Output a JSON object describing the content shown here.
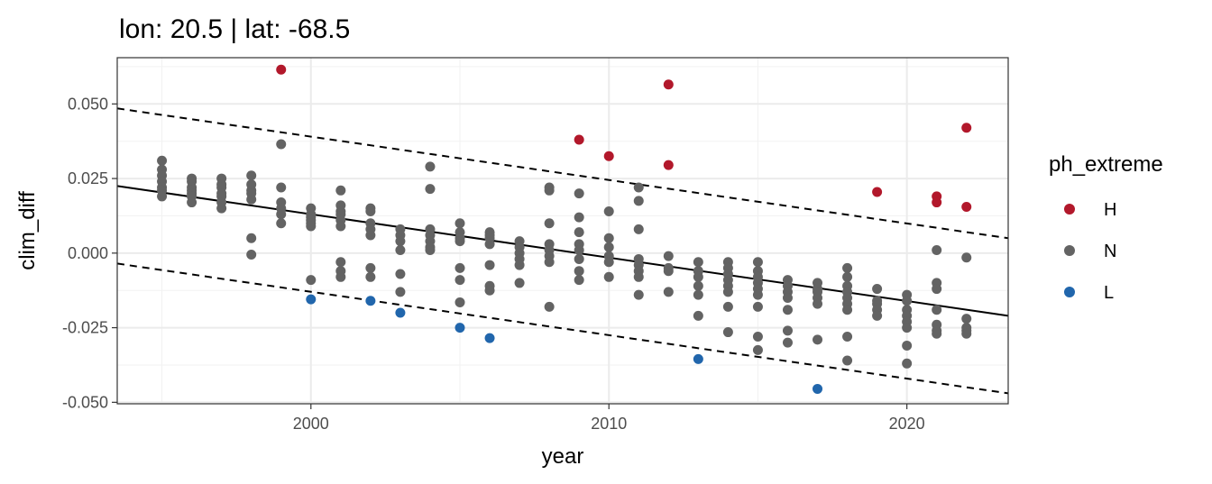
{
  "chart_data": {
    "type": "scatter",
    "title": "lon: 20.5 | lat: -68.5",
    "xlabel": "year",
    "ylabel": "clim_diff",
    "xlim": [
      1993.5,
      2023.4
    ],
    "ylim": [
      -0.0505,
      0.0655
    ],
    "x_ticks": [
      2000,
      2010,
      2020
    ],
    "x_tick_labels": [
      "2000",
      "2010",
      "2020"
    ],
    "y_ticks": [
      -0.05,
      -0.025,
      0.0,
      0.025,
      0.05
    ],
    "y_tick_labels": [
      "-0.050",
      "-0.025",
      "0.000",
      "0.025",
      "0.050"
    ],
    "grid": true,
    "legend": {
      "title": "ph_extreme",
      "placement": "right",
      "entries": [
        {
          "label": "H",
          "color": "#b2182b"
        },
        {
          "label": "N",
          "color": "#636363"
        },
        {
          "label": "L",
          "color": "#2166ac"
        }
      ]
    },
    "series": [
      {
        "name": "H",
        "color": "#b2182b",
        "points": [
          [
            1999,
            0.0615
          ],
          [
            2009,
            0.038
          ],
          [
            2010,
            0.0325
          ],
          [
            2012,
            0.0565
          ],
          [
            2012,
            0.0295
          ],
          [
            2019,
            0.0205
          ],
          [
            2021,
            0.019
          ],
          [
            2021,
            0.017
          ],
          [
            2022,
            0.042
          ],
          [
            2022,
            0.0155
          ]
        ]
      },
      {
        "name": "N",
        "color": "#636363",
        "points": [
          [
            1995,
            0.031
          ],
          [
            1995,
            0.028
          ],
          [
            1995,
            0.026
          ],
          [
            1995,
            0.024
          ],
          [
            1995,
            0.022
          ],
          [
            1995,
            0.021
          ],
          [
            1995,
            0.019
          ],
          [
            1996,
            0.025
          ],
          [
            1996,
            0.024
          ],
          [
            1996,
            0.022
          ],
          [
            1996,
            0.021
          ],
          [
            1996,
            0.02
          ],
          [
            1996,
            0.019
          ],
          [
            1996,
            0.017
          ],
          [
            1997,
            0.025
          ],
          [
            1997,
            0.023
          ],
          [
            1997,
            0.022
          ],
          [
            1997,
            0.02
          ],
          [
            1997,
            0.019
          ],
          [
            1997,
            0.017
          ],
          [
            1997,
            0.015
          ],
          [
            1998,
            0.026
          ],
          [
            1998,
            0.023
          ],
          [
            1998,
            0.021
          ],
          [
            1998,
            0.02
          ],
          [
            1998,
            0.018
          ],
          [
            1998,
            0.005
          ],
          [
            1998,
            -0.0005
          ],
          [
            1999,
            0.0365
          ],
          [
            1999,
            0.022
          ],
          [
            1999,
            0.017
          ],
          [
            1999,
            0.015
          ],
          [
            1999,
            0.013
          ],
          [
            1999,
            0.01
          ],
          [
            2000,
            0.015
          ],
          [
            2000,
            0.013
          ],
          [
            2000,
            0.012
          ],
          [
            2000,
            0.011
          ],
          [
            2000,
            0.01
          ],
          [
            2000,
            0.009
          ],
          [
            2000,
            -0.009
          ],
          [
            2001,
            0.021
          ],
          [
            2001,
            0.016
          ],
          [
            2001,
            0.014
          ],
          [
            2001,
            0.013
          ],
          [
            2001,
            0.011
          ],
          [
            2001,
            0.009
          ],
          [
            2001,
            -0.003
          ],
          [
            2001,
            -0.006
          ],
          [
            2001,
            -0.008
          ],
          [
            2002,
            0.015
          ],
          [
            2002,
            0.014
          ],
          [
            2002,
            0.01
          ],
          [
            2002,
            0.008
          ],
          [
            2002,
            0.006
          ],
          [
            2002,
            -0.005
          ],
          [
            2002,
            -0.008
          ],
          [
            2003,
            0.008
          ],
          [
            2003,
            0.006
          ],
          [
            2003,
            0.004
          ],
          [
            2003,
            0.001
          ],
          [
            2003,
            -0.007
          ],
          [
            2003,
            -0.013
          ],
          [
            2004,
            0.029
          ],
          [
            2004,
            0.0215
          ],
          [
            2004,
            0.008
          ],
          [
            2004,
            0.006
          ],
          [
            2004,
            0.004
          ],
          [
            2004,
            0.002
          ],
          [
            2004,
            0.001
          ],
          [
            2005,
            0.01
          ],
          [
            2005,
            0.007
          ],
          [
            2005,
            0.005
          ],
          [
            2005,
            0.004
          ],
          [
            2005,
            -0.005
          ],
          [
            2005,
            -0.009
          ],
          [
            2005,
            -0.0165
          ],
          [
            2006,
            0.007
          ],
          [
            2006,
            0.006
          ],
          [
            2006,
            0.005
          ],
          [
            2006,
            0.003
          ],
          [
            2006,
            -0.004
          ],
          [
            2006,
            -0.011
          ],
          [
            2006,
            -0.0125
          ],
          [
            2007,
            0.004
          ],
          [
            2007,
            0.002
          ],
          [
            2007,
            0.0
          ],
          [
            2007,
            -0.002
          ],
          [
            2007,
            -0.004
          ],
          [
            2007,
            -0.01
          ],
          [
            2008,
            0.022
          ],
          [
            2008,
            0.021
          ],
          [
            2008,
            0.01
          ],
          [
            2008,
            0.003
          ],
          [
            2008,
            0.001
          ],
          [
            2008,
            -0.001
          ],
          [
            2008,
            -0.003
          ],
          [
            2008,
            -0.018
          ],
          [
            2009,
            0.02
          ],
          [
            2009,
            0.012
          ],
          [
            2009,
            0.007
          ],
          [
            2009,
            0.003
          ],
          [
            2009,
            0.001
          ],
          [
            2009,
            -0.002
          ],
          [
            2009,
            -0.006
          ],
          [
            2009,
            -0.009
          ],
          [
            2010,
            0.014
          ],
          [
            2010,
            0.005
          ],
          [
            2010,
            0.002
          ],
          [
            2010,
            -0.001
          ],
          [
            2010,
            -0.003
          ],
          [
            2010,
            -0.008
          ],
          [
            2011,
            0.022
          ],
          [
            2011,
            0.0175
          ],
          [
            2011,
            0.008
          ],
          [
            2011,
            -0.002
          ],
          [
            2011,
            -0.004
          ],
          [
            2011,
            -0.006
          ],
          [
            2011,
            -0.008
          ],
          [
            2011,
            -0.014
          ],
          [
            2012,
            -0.001
          ],
          [
            2012,
            -0.005
          ],
          [
            2012,
            -0.006
          ],
          [
            2012,
            -0.013
          ],
          [
            2013,
            -0.003
          ],
          [
            2013,
            -0.006
          ],
          [
            2013,
            -0.008
          ],
          [
            2013,
            -0.011
          ],
          [
            2013,
            -0.014
          ],
          [
            2013,
            -0.021
          ],
          [
            2014,
            -0.003
          ],
          [
            2014,
            -0.005
          ],
          [
            2014,
            -0.007
          ],
          [
            2014,
            -0.009
          ],
          [
            2014,
            -0.011
          ],
          [
            2014,
            -0.013
          ],
          [
            2014,
            -0.018
          ],
          [
            2014,
            -0.0265
          ],
          [
            2015,
            -0.003
          ],
          [
            2015,
            -0.006
          ],
          [
            2015,
            -0.008
          ],
          [
            2015,
            -0.01
          ],
          [
            2015,
            -0.012
          ],
          [
            2015,
            -0.014
          ],
          [
            2015,
            -0.018
          ],
          [
            2015,
            -0.028
          ],
          [
            2015,
            -0.0325
          ],
          [
            2016,
            -0.009
          ],
          [
            2016,
            -0.011
          ],
          [
            2016,
            -0.013
          ],
          [
            2016,
            -0.015
          ],
          [
            2016,
            -0.019
          ],
          [
            2016,
            -0.026
          ],
          [
            2016,
            -0.03
          ],
          [
            2017,
            -0.01
          ],
          [
            2017,
            -0.012
          ],
          [
            2017,
            -0.013
          ],
          [
            2017,
            -0.015
          ],
          [
            2017,
            -0.017
          ],
          [
            2017,
            -0.029
          ],
          [
            2018,
            -0.005
          ],
          [
            2018,
            -0.008
          ],
          [
            2018,
            -0.011
          ],
          [
            2018,
            -0.013
          ],
          [
            2018,
            -0.015
          ],
          [
            2018,
            -0.017
          ],
          [
            2018,
            -0.019
          ],
          [
            2018,
            -0.028
          ],
          [
            2018,
            -0.036
          ],
          [
            2019,
            -0.012
          ],
          [
            2019,
            -0.016
          ],
          [
            2019,
            -0.017
          ],
          [
            2019,
            -0.019
          ],
          [
            2019,
            -0.021
          ],
          [
            2020,
            -0.014
          ],
          [
            2020,
            -0.016
          ],
          [
            2020,
            -0.019
          ],
          [
            2020,
            -0.021
          ],
          [
            2020,
            -0.023
          ],
          [
            2020,
            -0.025
          ],
          [
            2020,
            -0.031
          ],
          [
            2020,
            -0.037
          ],
          [
            2021,
            0.001
          ],
          [
            2021,
            -0.01
          ],
          [
            2021,
            -0.012
          ],
          [
            2021,
            -0.019
          ],
          [
            2021,
            -0.024
          ],
          [
            2021,
            -0.026
          ],
          [
            2021,
            -0.027
          ],
          [
            2022,
            -0.0015
          ],
          [
            2022,
            -0.022
          ],
          [
            2022,
            -0.025
          ],
          [
            2022,
            -0.026
          ],
          [
            2022,
            -0.027
          ]
        ]
      },
      {
        "name": "L",
        "color": "#2166ac",
        "points": [
          [
            2000,
            -0.0155
          ],
          [
            2002,
            -0.016
          ],
          [
            2003,
            -0.02
          ],
          [
            2005,
            -0.025
          ],
          [
            2006,
            -0.0285
          ],
          [
            2013,
            -0.0355
          ],
          [
            2017,
            -0.0455
          ]
        ]
      }
    ],
    "lines": [
      {
        "style": "solid",
        "color": "#000000",
        "from": [
          1993.5,
          0.0225
        ],
        "to": [
          2023.4,
          -0.021
        ]
      },
      {
        "style": "dashed",
        "color": "#000000",
        "from": [
          1993.5,
          0.0485
        ],
        "to": [
          2023.4,
          0.005
        ]
      },
      {
        "style": "dashed",
        "color": "#000000",
        "from": [
          1993.5,
          -0.0035
        ],
        "to": [
          2023.4,
          -0.047
        ]
      }
    ]
  }
}
